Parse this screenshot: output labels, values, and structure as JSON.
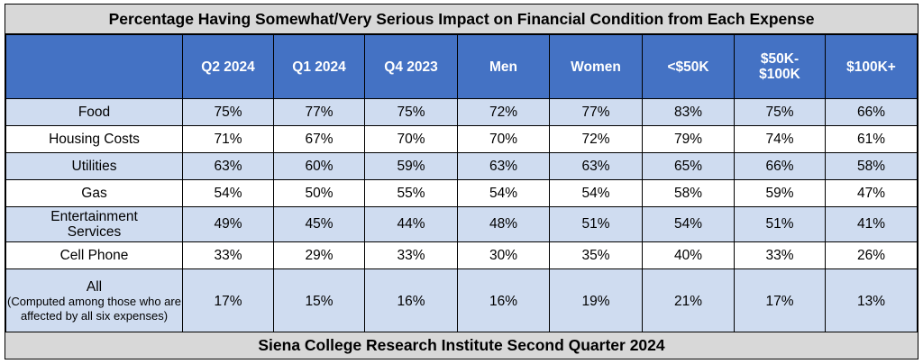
{
  "title": "Percentage Having Somewhat/Very Serious Impact on Financial Condition from Each Expense",
  "footer": "Siena College Research Institute Second Quarter 2024",
  "chart_data": {
    "type": "table",
    "columns": [
      "",
      "Q2 2024",
      "Q1 2024",
      "Q4 2023",
      "Men",
      "Women",
      "<$50K",
      "$50K-\n$100K",
      "$100K+"
    ],
    "rows": [
      {
        "label": "Food",
        "note": "",
        "values": [
          "75%",
          "77%",
          "75%",
          "72%",
          "77%",
          "83%",
          "75%",
          "66%"
        ]
      },
      {
        "label": "Housing Costs",
        "note": "",
        "values": [
          "71%",
          "67%",
          "70%",
          "70%",
          "72%",
          "79%",
          "74%",
          "61%"
        ]
      },
      {
        "label": "Utilities",
        "note": "",
        "values": [
          "63%",
          "60%",
          "59%",
          "63%",
          "63%",
          "65%",
          "66%",
          "58%"
        ]
      },
      {
        "label": "Gas",
        "note": "",
        "values": [
          "54%",
          "50%",
          "55%",
          "54%",
          "54%",
          "58%",
          "59%",
          "47%"
        ]
      },
      {
        "label": "Entertainment\nServices",
        "note": "",
        "values": [
          "49%",
          "45%",
          "44%",
          "48%",
          "51%",
          "54%",
          "51%",
          "41%"
        ]
      },
      {
        "label": "Cell Phone",
        "note": "",
        "values": [
          "33%",
          "29%",
          "33%",
          "30%",
          "35%",
          "40%",
          "33%",
          "26%"
        ]
      },
      {
        "label": "All",
        "note": "(Computed among those who are affected by all six expenses)",
        "values": [
          "17%",
          "15%",
          "16%",
          "16%",
          "19%",
          "21%",
          "17%",
          "13%"
        ]
      }
    ]
  },
  "colors": {
    "header_fill": "#4472c4",
    "band_fill": "#cfdcf0",
    "title_fill": "#d8d8d8"
  }
}
